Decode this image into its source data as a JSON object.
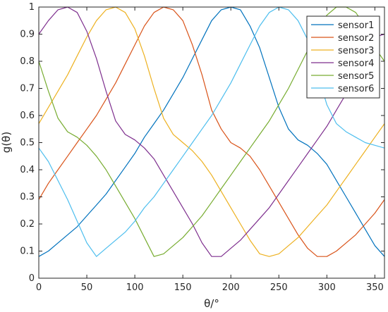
{
  "chart_data": {
    "type": "line",
    "title": "",
    "xlabel": "θ/°",
    "ylabel": "g(θ)",
    "xlim": [
      0,
      360
    ],
    "ylim": [
      0,
      1
    ],
    "xticks": [
      0,
      50,
      100,
      150,
      200,
      250,
      300,
      350
    ],
    "yticks": [
      0,
      0.1,
      0.2,
      0.3,
      0.4,
      0.5,
      0.6,
      0.7,
      0.8,
      0.9,
      1
    ],
    "grid": false,
    "legend_position": "top-right",
    "series": [
      {
        "name": "sensor1",
        "color": "#0072BD",
        "x": [
          0,
          10,
          20,
          30,
          40,
          50,
          60,
          70,
          80,
          90,
          100,
          110,
          120,
          130,
          140,
          150,
          160,
          170,
          180,
          190,
          200,
          210,
          220,
          230,
          240,
          250,
          260,
          270,
          280,
          290,
          300,
          310,
          320,
          330,
          340,
          350,
          360
        ],
        "y": [
          0.08,
          0.1,
          0.13,
          0.16,
          0.19,
          0.23,
          0.27,
          0.31,
          0.36,
          0.41,
          0.46,
          0.52,
          0.57,
          0.62,
          0.68,
          0.74,
          0.81,
          0.88,
          0.95,
          0.99,
          1.0,
          0.99,
          0.93,
          0.85,
          0.74,
          0.63,
          0.55,
          0.51,
          0.49,
          0.46,
          0.42,
          0.36,
          0.3,
          0.24,
          0.18,
          0.12,
          0.08
        ]
      },
      {
        "name": "sensor2",
        "color": "#D95319",
        "x": [
          0,
          10,
          20,
          30,
          40,
          50,
          60,
          70,
          80,
          90,
          100,
          110,
          120,
          130,
          140,
          150,
          160,
          170,
          180,
          190,
          200,
          210,
          220,
          230,
          240,
          250,
          260,
          270,
          280,
          290,
          300,
          310,
          320,
          330,
          340,
          350,
          360
        ],
        "y": [
          0.29,
          0.35,
          0.4,
          0.45,
          0.5,
          0.55,
          0.6,
          0.66,
          0.72,
          0.79,
          0.86,
          0.93,
          0.98,
          1.0,
          0.99,
          0.95,
          0.86,
          0.75,
          0.62,
          0.55,
          0.5,
          0.48,
          0.45,
          0.4,
          0.34,
          0.28,
          0.22,
          0.16,
          0.11,
          0.08,
          0.08,
          0.1,
          0.13,
          0.16,
          0.2,
          0.24,
          0.29
        ]
      },
      {
        "name": "sensor3",
        "color": "#EDB120",
        "x": [
          0,
          10,
          20,
          30,
          40,
          50,
          60,
          70,
          80,
          90,
          100,
          110,
          120,
          130,
          140,
          150,
          160,
          170,
          180,
          190,
          200,
          210,
          220,
          230,
          240,
          250,
          260,
          270,
          280,
          290,
          300,
          310,
          320,
          330,
          340,
          350,
          360
        ],
        "y": [
          0.57,
          0.63,
          0.69,
          0.75,
          0.82,
          0.89,
          0.95,
          0.99,
          1.0,
          0.98,
          0.92,
          0.82,
          0.7,
          0.59,
          0.53,
          0.5,
          0.47,
          0.43,
          0.38,
          0.32,
          0.26,
          0.2,
          0.14,
          0.09,
          0.08,
          0.09,
          0.12,
          0.15,
          0.19,
          0.23,
          0.27,
          0.32,
          0.37,
          0.42,
          0.47,
          0.52,
          0.57
        ]
      },
      {
        "name": "sensor4",
        "color": "#7E2F8E",
        "x": [
          0,
          10,
          20,
          30,
          40,
          50,
          60,
          70,
          80,
          90,
          100,
          110,
          120,
          130,
          140,
          150,
          160,
          170,
          180,
          190,
          200,
          210,
          220,
          230,
          240,
          250,
          260,
          270,
          280,
          290,
          300,
          310,
          320,
          330,
          340,
          350,
          360
        ],
        "y": [
          0.9,
          0.95,
          0.99,
          1.0,
          0.98,
          0.91,
          0.81,
          0.69,
          0.58,
          0.53,
          0.51,
          0.48,
          0.44,
          0.38,
          0.32,
          0.26,
          0.2,
          0.13,
          0.08,
          0.08,
          0.11,
          0.14,
          0.18,
          0.22,
          0.26,
          0.31,
          0.36,
          0.41,
          0.46,
          0.51,
          0.56,
          0.62,
          0.68,
          0.75,
          0.82,
          0.89,
          0.9
        ]
      },
      {
        "name": "sensor5",
        "color": "#77AC30",
        "x": [
          0,
          10,
          20,
          30,
          40,
          50,
          60,
          70,
          80,
          90,
          100,
          110,
          120,
          130,
          140,
          150,
          160,
          170,
          180,
          190,
          200,
          210,
          220,
          230,
          240,
          250,
          260,
          270,
          280,
          290,
          300,
          310,
          320,
          330,
          340,
          350,
          360
        ],
        "y": [
          0.8,
          0.69,
          0.59,
          0.54,
          0.52,
          0.49,
          0.45,
          0.4,
          0.34,
          0.28,
          0.22,
          0.15,
          0.08,
          0.09,
          0.12,
          0.15,
          0.19,
          0.23,
          0.28,
          0.33,
          0.38,
          0.43,
          0.48,
          0.53,
          0.58,
          0.64,
          0.7,
          0.77,
          0.84,
          0.91,
          0.97,
          1.0,
          1.0,
          0.98,
          0.93,
          0.85,
          0.8
        ]
      },
      {
        "name": "sensor6",
        "color": "#4DBEEE",
        "x": [
          0,
          10,
          20,
          30,
          40,
          50,
          60,
          70,
          80,
          90,
          100,
          110,
          120,
          130,
          140,
          150,
          160,
          170,
          180,
          190,
          200,
          210,
          220,
          230,
          240,
          250,
          260,
          270,
          280,
          290,
          300,
          310,
          320,
          330,
          340,
          350,
          360
        ],
        "y": [
          0.48,
          0.43,
          0.36,
          0.29,
          0.21,
          0.13,
          0.08,
          0.11,
          0.14,
          0.17,
          0.21,
          0.26,
          0.3,
          0.35,
          0.4,
          0.45,
          0.5,
          0.55,
          0.6,
          0.66,
          0.72,
          0.79,
          0.86,
          0.93,
          0.98,
          1.0,
          0.99,
          0.95,
          0.88,
          0.76,
          0.64,
          0.57,
          0.54,
          0.52,
          0.5,
          0.49,
          0.48
        ]
      }
    ]
  }
}
